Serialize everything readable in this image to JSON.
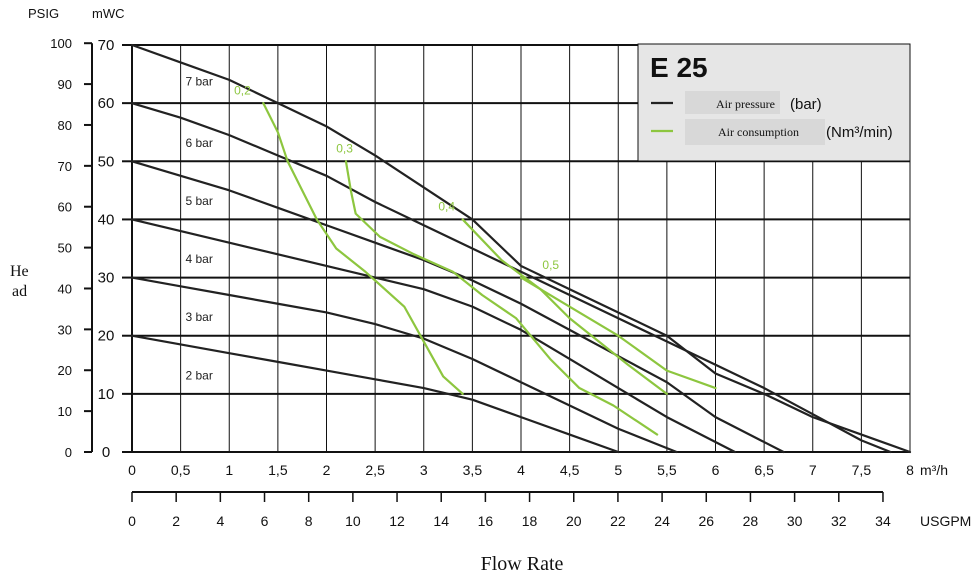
{
  "chart_data": {
    "type": "line",
    "title": "E 25",
    "xlabel": "Flow Rate",
    "ylabel": "Head",
    "axes": {
      "left_units": [
        "PSIG",
        "mWC"
      ],
      "bottom_units": [
        "m³/h",
        "USGPM"
      ],
      "x_m3h_ticks": [
        "0",
        "0,5",
        "1",
        "1,5",
        "2",
        "2,5",
        "3",
        "3,5",
        "4",
        "4,5",
        "5",
        "5,5",
        "6",
        "6,5",
        "7",
        "7,5",
        "8"
      ],
      "x_usgpm_ticks": [
        "0",
        "2",
        "4",
        "6",
        "8",
        "10",
        "12",
        "14",
        "16",
        "18",
        "20",
        "22",
        "24",
        "26",
        "28",
        "30",
        "32",
        "34"
      ],
      "y_psig_ticks": [
        "0",
        "10",
        "20",
        "30",
        "40",
        "50",
        "60",
        "70",
        "80",
        "90",
        "100"
      ],
      "y_mwc_ticks": [
        "0",
        "10",
        "20",
        "30",
        "40",
        "50",
        "60",
        "70"
      ],
      "x_range": [
        0,
        8
      ],
      "y_range": [
        0,
        70
      ],
      "usgpm_per_m3h": 4.403,
      "psig_per_mwc": 1.4223
    },
    "grid": true,
    "legend": {
      "position": "top-right",
      "title": "E 25",
      "items": [
        {
          "label": "Air pressure",
          "unit": "(bar)",
          "color": "#222222"
        },
        {
          "label": "Air consumption",
          "unit": "(Nm³/min)",
          "color": "#8dc63f"
        }
      ]
    },
    "pressure_series": [
      {
        "name": "7 bar",
        "label_pos": {
          "x": 0.55,
          "y": 63
        },
        "x": [
          0,
          0.5,
          1,
          1.5,
          2,
          2.5,
          3,
          3.5,
          4,
          4.5,
          5,
          5.5,
          6,
          6.5,
          7,
          7.5,
          8
        ],
        "y": [
          70,
          67,
          64,
          60,
          56,
          51,
          45.5,
          40,
          32,
          28,
          24,
          20,
          13.5,
          10,
          6,
          3,
          0
        ]
      },
      {
        "name": "6 bar",
        "label_pos": {
          "x": 0.55,
          "y": 52.5
        },
        "x": [
          0,
          0.5,
          1,
          1.5,
          2,
          2.5,
          3,
          3.5,
          4,
          4.5,
          5,
          5.5,
          6,
          6.5,
          7,
          7.5,
          7.8
        ],
        "y": [
          60,
          57.5,
          54.5,
          51,
          47.5,
          43,
          39,
          35,
          31,
          27,
          23,
          19,
          15,
          11,
          6.5,
          2,
          0
        ]
      },
      {
        "name": "5 bar",
        "label_pos": {
          "x": 0.55,
          "y": 42.5
        },
        "x": [
          0,
          0.5,
          1,
          1.5,
          2,
          2.5,
          3,
          3.5,
          4,
          4.5,
          5,
          5.5,
          6,
          6.7
        ],
        "y": [
          50,
          47.5,
          45,
          42,
          39,
          36,
          33,
          29.5,
          25.5,
          21,
          16.5,
          12,
          6,
          0
        ]
      },
      {
        "name": "4 bar",
        "label_pos": {
          "x": 0.55,
          "y": 32.5
        },
        "x": [
          0,
          0.5,
          1,
          1.5,
          2,
          2.5,
          3,
          3.5,
          4,
          4.5,
          5,
          5.5,
          6.2
        ],
        "y": [
          40,
          38,
          36,
          34,
          32,
          30,
          28,
          25,
          21,
          16,
          11,
          6,
          0
        ]
      },
      {
        "name": "3 bar",
        "label_pos": {
          "x": 0.55,
          "y": 22.5
        },
        "x": [
          0,
          0.5,
          1,
          1.5,
          2,
          2.5,
          3,
          3.5,
          4,
          4.5,
          5,
          5.6
        ],
        "y": [
          30,
          28.5,
          27,
          25.5,
          24,
          22,
          19.5,
          16,
          12,
          8,
          4,
          0
        ]
      },
      {
        "name": "2 bar",
        "label_pos": {
          "x": 0.55,
          "y": 12.5
        },
        "x": [
          0,
          0.5,
          1,
          1.5,
          2,
          2.5,
          3,
          3.5,
          4,
          4.5,
          5
        ],
        "y": [
          20,
          18.5,
          17,
          15.5,
          14,
          12.5,
          11,
          9,
          6,
          3,
          0
        ]
      }
    ],
    "consumption_series": [
      {
        "name": "0,2",
        "label_pos": {
          "x": 1.05,
          "y": 61.5
        },
        "x": [
          1.35,
          1.5,
          1.6,
          1.75,
          1.9,
          2.1,
          2.4,
          2.8,
          3.0,
          3.2,
          3.4
        ],
        "y": [
          60,
          55,
          50,
          45,
          40,
          35,
          31,
          25,
          19,
          13,
          10
        ]
      },
      {
        "name": "0,3",
        "label_pos": {
          "x": 2.1,
          "y": 51.5
        },
        "x": [
          2.2,
          2.25,
          2.3,
          2.55,
          2.9,
          3.3,
          3.6,
          3.95,
          4.3,
          4.6,
          4.95,
          5.4
        ],
        "y": [
          50,
          45,
          41,
          37,
          34,
          31,
          27,
          23,
          16,
          11,
          8,
          3
        ]
      },
      {
        "name": "0,4",
        "label_pos": {
          "x": 3.15,
          "y": 41.5
        },
        "x": [
          3.4,
          3.8,
          4.2,
          4.5,
          4.8,
          5.1,
          5.5
        ],
        "y": [
          40,
          33,
          28,
          23,
          19,
          15,
          10
        ]
      },
      {
        "name": "0,5",
        "label_pos": {
          "x": 4.22,
          "y": 31.5
        },
        "x": [
          4.0,
          4.5,
          5.0,
          5.5,
          6.0
        ],
        "y": [
          30,
          25,
          20,
          14,
          11
        ]
      }
    ]
  }
}
